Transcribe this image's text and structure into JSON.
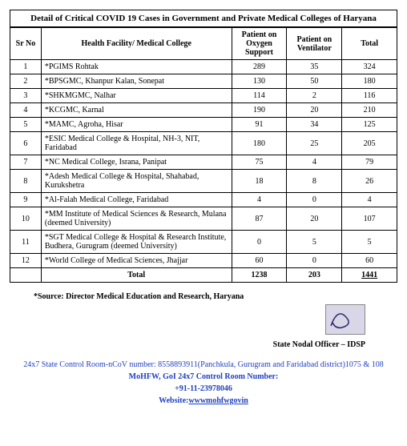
{
  "title": "Detail of Critical COVID 19 Cases in Government and Private Medical Colleges of Haryana",
  "columns": {
    "sr": "Sr No",
    "facility": "Health Facility/ Medical College",
    "oxygen": "Patient on Oxygen Support",
    "vent": "Patient on Ventilator",
    "total": "Total"
  },
  "rows": [
    {
      "sr": "1",
      "name": "*PGIMS Rohtak",
      "o": "289",
      "v": "35",
      "t": "324"
    },
    {
      "sr": "2",
      "name": "*BPSGMC, Khanpur Kalan, Sonepat",
      "o": "130",
      "v": "50",
      "t": "180"
    },
    {
      "sr": "3",
      "name": "*SHKMGMC, Nalhar",
      "o": "114",
      "v": "2",
      "t": "116"
    },
    {
      "sr": "4",
      "name": "*KCGMC, Karnal",
      "o": "190",
      "v": "20",
      "t": "210"
    },
    {
      "sr": "5",
      "name": "*MAMC, Agroha, Hisar",
      "o": "91",
      "v": "34",
      "t": "125"
    },
    {
      "sr": "6",
      "name": "*ESIC Medical College & Hospital, NH-3, NIT, Faridabad",
      "o": "180",
      "v": "25",
      "t": "205"
    },
    {
      "sr": "7",
      "name": "*NC Medical College, Israna, Panipat",
      "o": "75",
      "v": "4",
      "t": "79"
    },
    {
      "sr": "8",
      "name": "*Adesh Medical College & Hospital, Shahabad, Kurukshetra",
      "o": "18",
      "v": "8",
      "t": "26"
    },
    {
      "sr": "9",
      "name": "*Al-Falah Medical College, Faridabad",
      "o": "4",
      "v": "0",
      "t": "4"
    },
    {
      "sr": "10",
      "name": "*MM Institute of Medical Sciences & Research, Mulana (deemed University)",
      "o": "87",
      "v": "20",
      "t": "107"
    },
    {
      "sr": "11",
      "name": "*SGT Medical College & Hospital & Research Institute, Budhera, Gurugram (deemed University)",
      "o": "0",
      "v": "5",
      "t": "5"
    },
    {
      "sr": "12",
      "name": "*World College of Medical Sciences, Jhajjar",
      "o": "60",
      "v": "0",
      "t": "60"
    }
  ],
  "totals": {
    "label": "Total",
    "o": "1238",
    "v": "203",
    "t": "1441"
  },
  "source": "*Source: Director Medical Education and Research, Haryana",
  "officer": "State Nodal Officer – IDSP",
  "footer": {
    "line1a": "24x7 State Control Room-nCoV number:  ",
    "line1b": "8558893911(Panchkula, Gurugram and Faridabad district)1075 & 108",
    "line2": "MoHFW, GoI 24x7 Control Room Number:",
    "line3": "+91-11-23978046",
    "webLabel": "Website:",
    "webLink": "wwwmohfwgovin"
  },
  "style": {
    "border_color": "#000000",
    "background": "#ffffff",
    "link_color": "#1f3fbf",
    "sig_bg": "#d9d6e8",
    "font_family": "Times New Roman"
  }
}
